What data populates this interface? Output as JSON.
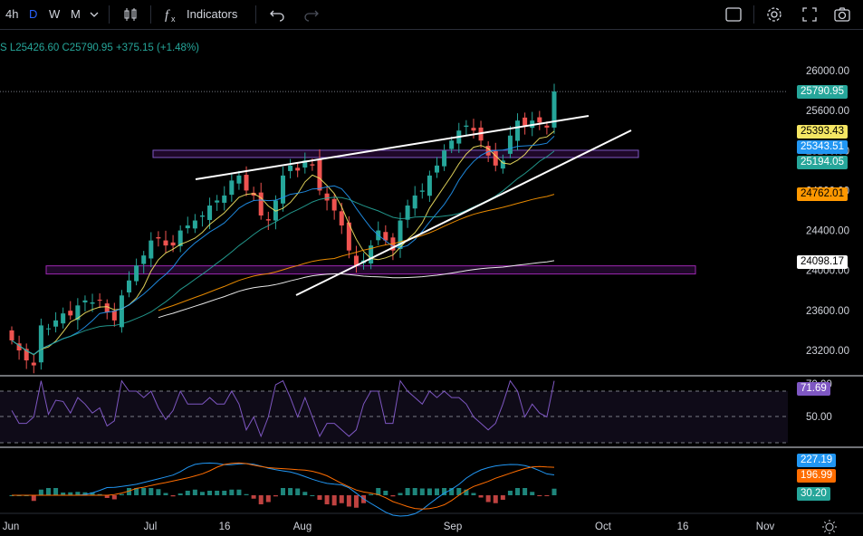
{
  "toolbar": {
    "intervals": [
      "4h",
      "D",
      "W",
      "M"
    ],
    "active_interval": "D",
    "indicators_label": "Indicators",
    "icons": [
      "chevron-down-icon",
      "candles-icon",
      "function-icon",
      "undo-icon",
      "redo-icon",
      "square-icon",
      "gear-icon",
      "fullscreen-icon",
      "camera-icon"
    ]
  },
  "legend": {
    "low": "L25426.60",
    "close": "C25790.95",
    "change": "+375.15 (+1.48%)",
    "color": "#26a69a"
  },
  "price_badges": [
    {
      "value": "25790.95",
      "bg": "#26a69a",
      "fg": "#ffffff"
    },
    {
      "value": "25393.43",
      "bg": "#f5e663",
      "fg": "#000000"
    },
    {
      "value": "25343.51",
      "bg": "#2196f3",
      "fg": "#ffffff"
    },
    {
      "value": "25194.05",
      "bg": "#26a69a",
      "fg": "#ffffff"
    },
    {
      "value": "24762.01",
      "bg": "#ff9800",
      "fg": "#000000"
    },
    {
      "value": "24098.17",
      "bg": "#ffffff",
      "fg": "#000000"
    }
  ],
  "rsi_badge": {
    "value": "71.69",
    "bg": "#7e57c2",
    "fg": "#ffffff"
  },
  "macd_badges": [
    {
      "value": "227.19",
      "bg": "#2196f3",
      "fg": "#ffffff"
    },
    {
      "value": "196.99",
      "bg": "#ff6d00",
      "fg": "#ffffff"
    },
    {
      "value": "30.20",
      "bg": "#26a69a",
      "fg": "#ffffff"
    }
  ],
  "chart_data": {
    "type": "candlestick",
    "y_ticks": [
      26000,
      25600,
      25200,
      24800,
      24400,
      24000,
      23600,
      23200
    ],
    "y_tick_labels": [
      "26000.00",
      "25600.00",
      "25200.00",
      "24800.00",
      "24400.00",
      "24000.00",
      "23600.00",
      "23200.00"
    ],
    "ylim": [
      23000,
      26200
    ],
    "x_tick_labels": [
      "Jun",
      "Jul",
      "16",
      "Aug",
      "Sep",
      "Oct",
      "16",
      "Nov"
    ],
    "close_values": [
      23300,
      23200,
      23100,
      23050,
      23450,
      23420,
      23500,
      23570,
      23550,
      23650,
      23700,
      23680,
      23700,
      23580,
      23500,
      23750,
      23900,
      24050,
      24150,
      24300,
      24320,
      24250,
      24250,
      24400,
      24450,
      24500,
      24550,
      24650,
      24700,
      24750,
      24900,
      24950,
      24800,
      24750,
      24550,
      24500,
      24700,
      24950,
      25050,
      25000,
      25100,
      25050,
      24800,
      24700,
      24600,
      24450,
      24200,
      24050,
      24100,
      24250,
      24400,
      24300,
      24200,
      24500,
      24650,
      24750,
      24800,
      24950,
      25050,
      25200,
      25300,
      25400,
      25450,
      25400,
      25300,
      25150,
      25050,
      25100,
      25350,
      25500,
      25450,
      25500,
      25480,
      25430,
      25790.95
    ],
    "rsi": {
      "value": 71.69,
      "levels": [
        70,
        50,
        30
      ],
      "tick_labels": [
        "70.00",
        "50.00"
      ]
    },
    "macd": {
      "macd": 227.19,
      "signal": 196.99,
      "histogram": 30.2
    },
    "moving_averages": [
      {
        "period_color": "#f5e663",
        "last": 25393.43
      },
      {
        "period_color": "#2196f3",
        "last": 25343.51
      },
      {
        "period_color": "#26a69a",
        "last": 25194.05
      },
      {
        "period_color": "#ff9800",
        "last": 24762.01
      },
      {
        "period_color": "#ffffff",
        "last": 24098.17
      }
    ],
    "colors": {
      "up": "#26a69a",
      "down": "#ef5350"
    }
  }
}
